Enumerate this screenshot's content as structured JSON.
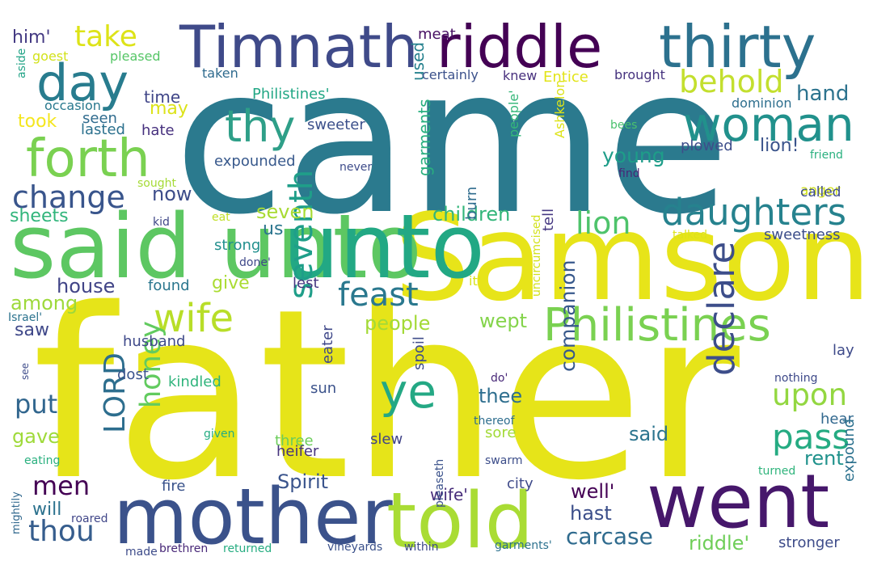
{
  "words": [
    {
      "text": "father",
      "color": "#e6e419"
    },
    {
      "text": "came",
      "color": "#2b7a8e"
    },
    {
      "text": "Samson",
      "color": "#e7e419"
    },
    {
      "text": "said unto",
      "color": "#5dc762"
    },
    {
      "text": "unto",
      "color": "#22a884"
    },
    {
      "text": "mother",
      "color": "#3b528b"
    },
    {
      "text": "told",
      "color": "#a9dc34"
    },
    {
      "text": "went",
      "color": "#46176b"
    },
    {
      "text": "Timnath",
      "color": "#3f4a89"
    },
    {
      "text": "riddle",
      "color": "#440154"
    },
    {
      "text": "thirty",
      "color": "#2c718e"
    },
    {
      "text": "day",
      "color": "#287c8e"
    },
    {
      "text": "forth",
      "color": "#7ad151"
    },
    {
      "text": "woman",
      "color": "#21918c"
    },
    {
      "text": "Philistines",
      "color": "#7ad151"
    },
    {
      "text": "thy",
      "color": "#2e9f88"
    },
    {
      "text": "ye",
      "color": "#24a884"
    },
    {
      "text": "daughters",
      "color": "#26828e"
    },
    {
      "text": "wife",
      "color": "#b8de29"
    },
    {
      "text": "declare",
      "color": "#3d4e8a"
    },
    {
      "text": "seventh",
      "color": "#1f9e89"
    },
    {
      "text": "change",
      "color": "#39558c"
    },
    {
      "text": "feast",
      "color": "#2a788e"
    },
    {
      "text": "pass",
      "color": "#25ab82"
    },
    {
      "text": "honey",
      "color": "#62cb5f"
    },
    {
      "text": "behold",
      "color": "#c3df2e"
    },
    {
      "text": "upon",
      "color": "#93d741"
    },
    {
      "text": "take",
      "color": "#dde318"
    },
    {
      "text": "lion",
      "color": "#4ec36b"
    },
    {
      "text": "men",
      "color": "#440154"
    },
    {
      "text": "LORD",
      "color": "#2d6e8e"
    },
    {
      "text": "put",
      "color": "#31668e"
    },
    {
      "text": "thou",
      "color": "#365d8d"
    },
    {
      "text": "companion",
      "color": "#38598c"
    },
    {
      "text": "carcase",
      "color": "#2f6b8e"
    },
    {
      "text": "hand",
      "color": "#2c738e"
    },
    {
      "text": "young",
      "color": "#1e9d89"
    },
    {
      "text": "children",
      "color": "#33b67a"
    },
    {
      "text": "thee",
      "color": "#2e6e8e"
    },
    {
      "text": "wife'",
      "color": "#472c7a"
    },
    {
      "text": "well'",
      "color": "#440154"
    },
    {
      "text": "riddle'",
      "color": "#6ece58"
    },
    {
      "text": "rent",
      "color": "#20928c"
    },
    {
      "text": "said",
      "color": "#2b748e"
    },
    {
      "text": "Spirit",
      "color": "#3a548c"
    },
    {
      "text": "gave",
      "color": "#9fda3a"
    },
    {
      "text": "house",
      "color": "#414487"
    },
    {
      "text": "seven",
      "color": "#a8db34"
    },
    {
      "text": "people",
      "color": "#a3da37"
    },
    {
      "text": "wept",
      "color": "#84d44b"
    },
    {
      "text": "among",
      "color": "#9dd93b"
    },
    {
      "text": "lion!",
      "color": "#3a538b"
    },
    {
      "text": "garments",
      "color": "#29af7f"
    },
    {
      "text": "used",
      "color": "#26818e"
    },
    {
      "text": "now",
      "color": "#3d4d8a"
    },
    {
      "text": "us",
      "color": "#2b758e"
    },
    {
      "text": "give",
      "color": "#aadc32"
    },
    {
      "text": "hast",
      "color": "#3c4f8a"
    },
    {
      "text": "will",
      "color": "#2c728e"
    },
    {
      "text": "sheets",
      "color": "#31b57b"
    },
    {
      "text": "time",
      "color": "#404688"
    },
    {
      "text": "may",
      "color": "#dce319"
    },
    {
      "text": "took",
      "color": "#f4e61e"
    },
    {
      "text": "him'",
      "color": "#443a83"
    },
    {
      "text": "saw",
      "color": "#3f4889"
    },
    {
      "text": "Philistines'",
      "color": "#22a785"
    },
    {
      "text": "sweeter",
      "color": "#3c508b"
    },
    {
      "text": "expounded",
      "color": "#38598c"
    },
    {
      "text": "plowed",
      "color": "#3d4d8a"
    },
    {
      "text": "Entice",
      "color": "#e2e418"
    },
    {
      "text": "strong",
      "color": "#218f8d"
    },
    {
      "text": "sweetness",
      "color": "#3d4e8a"
    },
    {
      "text": "anger",
      "color": "#d0e11c"
    },
    {
      "text": "called",
      "color": "#3e4c8a"
    },
    {
      "text": "found",
      "color": "#2a768e"
    },
    {
      "text": "lest",
      "color": "#453581"
    },
    {
      "text": "heifer",
      "color": "#45337d"
    },
    {
      "text": "husband",
      "color": "#3e4989"
    },
    {
      "text": "kindled",
      "color": "#2fb47c"
    },
    {
      "text": "dost",
      "color": "#3a548c"
    },
    {
      "text": "fire",
      "color": "#3a538b"
    },
    {
      "text": "slew",
      "color": "#414487"
    },
    {
      "text": "sore",
      "color": "#a2da37"
    },
    {
      "text": "city",
      "color": "#3e4a89"
    },
    {
      "text": "sun",
      "color": "#3b528b"
    },
    {
      "text": "hear",
      "color": "#31688e"
    },
    {
      "text": "lay",
      "color": "#3e4a89"
    },
    {
      "text": "stronger",
      "color": "#3e4c8a"
    },
    {
      "text": "expound",
      "color": "#2c718e"
    },
    {
      "text": "three",
      "color": "#6ccd5a"
    },
    {
      "text": "eater",
      "color": "#3f4889"
    },
    {
      "text": "spoil",
      "color": "#3e4c8a"
    },
    {
      "text": "burn",
      "color": "#2f6c8e"
    },
    {
      "text": "tell",
      "color": "#453882"
    },
    {
      "text": "seen",
      "color": "#2f6b8e"
    },
    {
      "text": "lasted",
      "color": "#2c718e"
    },
    {
      "text": "hate",
      "color": "#46307e"
    },
    {
      "text": "meat",
      "color": "#471063"
    },
    {
      "text": "pleased",
      "color": "#56c667"
    },
    {
      "text": "goest",
      "color": "#d2e21b"
    },
    {
      "text": "taken",
      "color": "#2f6b8e"
    },
    {
      "text": "certainly",
      "color": "#3b518b"
    },
    {
      "text": "knew",
      "color": "#472f7d"
    },
    {
      "text": "brought",
      "color": "#46337f"
    },
    {
      "text": "dominion",
      "color": "#2e6f8e"
    },
    {
      "text": "occasion",
      "color": "#29798e"
    },
    {
      "text": "aside",
      "color": "#20a386"
    },
    {
      "text": "bees",
      "color": "#4ac16d"
    },
    {
      "text": "friend",
      "color": "#2ab07f"
    },
    {
      "text": "sought",
      "color": "#a5db36"
    },
    {
      "text": "kid",
      "color": "#3f4788"
    },
    {
      "text": "eat",
      "color": "#c0df25"
    },
    {
      "text": "never",
      "color": "#3e4c8a"
    },
    {
      "text": "find",
      "color": "#482576"
    },
    {
      "text": "people'",
      "color": "#35b779"
    },
    {
      "text": "Ashkelon",
      "color": "#dde318"
    },
    {
      "text": "talked",
      "color": "#dde318"
    },
    {
      "text": "done'",
      "color": "#3f4889"
    },
    {
      "text": "it'",
      "color": "#d8e219"
    },
    {
      "text": "uncircumcised",
      "color": "#d2e21b"
    },
    {
      "text": "Israel'",
      "color": "#2c738e"
    },
    {
      "text": "do'",
      "color": "#482878"
    },
    {
      "text": "nothing",
      "color": "#3e4989"
    },
    {
      "text": "see",
      "color": "#3e4c8a"
    },
    {
      "text": "thereof",
      "color": "#2e6e8e"
    },
    {
      "text": "given",
      "color": "#25ac82"
    },
    {
      "text": "eating",
      "color": "#2ab07f"
    },
    {
      "text": "pleaseth",
      "color": "#3b528b"
    },
    {
      "text": "swarm",
      "color": "#3d4e8a"
    },
    {
      "text": "turned",
      "color": "#2fb47c"
    },
    {
      "text": "mightily",
      "color": "#31688e"
    },
    {
      "text": "roared",
      "color": "#404688"
    },
    {
      "text": "made",
      "color": "#3e4c8a"
    },
    {
      "text": "brethren",
      "color": "#482878"
    },
    {
      "text": "returned",
      "color": "#26ad81"
    },
    {
      "text": "vineyards",
      "color": "#3b518b"
    },
    {
      "text": "within",
      "color": "#3e4a89"
    },
    {
      "text": "garments'",
      "color": "#2c718e"
    }
  ]
}
